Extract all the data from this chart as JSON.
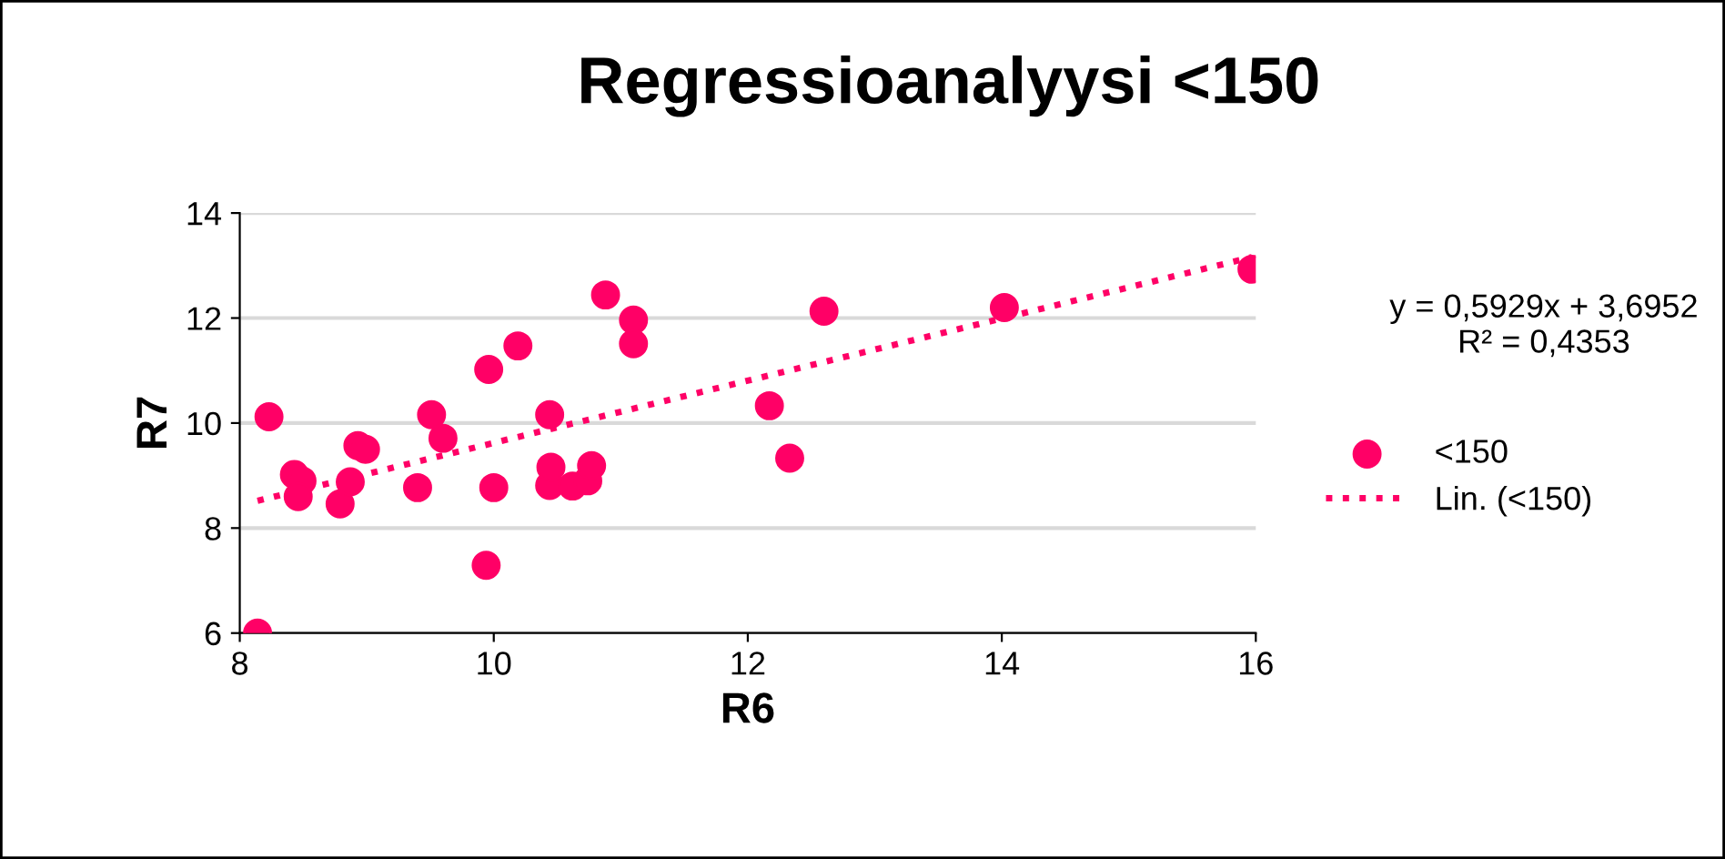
{
  "chart_data": {
    "type": "scatter",
    "title": "Regressioanalyysi <150",
    "xlabel": "R6",
    "ylabel": "R7",
    "xlim": [
      8,
      16
    ],
    "xticks": [
      8,
      10,
      12,
      14,
      16
    ],
    "ylim": [
      6,
      14
    ],
    "yticks": [
      6,
      8,
      10,
      12,
      14
    ],
    "grid": "y",
    "legend": "right",
    "marker": "circle",
    "annotations": [
      "y = 0,5929x + 3,6952\nR² = 0,4353"
    ],
    "series": [
      {
        "name": "<150",
        "color": "#ff0066",
        "x": [
          8.14,
          8.23,
          8.43,
          8.49,
          8.46,
          8.79,
          8.87,
          8.93,
          8.99,
          9.4,
          9.51,
          9.6,
          9.94,
          9.96,
          10.0,
          10.19,
          10.44,
          10.44,
          10.45,
          10.62,
          10.74,
          10.77,
          10.88,
          11.1,
          11.1,
          12.17,
          12.33,
          12.6,
          14.02,
          15.97
        ],
        "values": [
          6.0,
          10.12,
          9.02,
          8.9,
          8.6,
          8.46,
          8.88,
          9.57,
          9.5,
          8.77,
          10.16,
          9.71,
          7.29,
          11.02,
          8.77,
          11.47,
          10.16,
          8.81,
          9.16,
          8.8,
          8.9,
          9.19,
          12.44,
          11.96,
          11.51,
          10.33,
          9.33,
          12.13,
          12.2,
          12.93
        ]
      },
      {
        "name": "Lin. (<150)",
        "type": "line",
        "line_style": "dotted",
        "marker": "none",
        "color": "#ff0066",
        "x": [
          8.14,
          15.97
        ],
        "values": [
          8.52,
          13.16
        ]
      }
    ]
  }
}
